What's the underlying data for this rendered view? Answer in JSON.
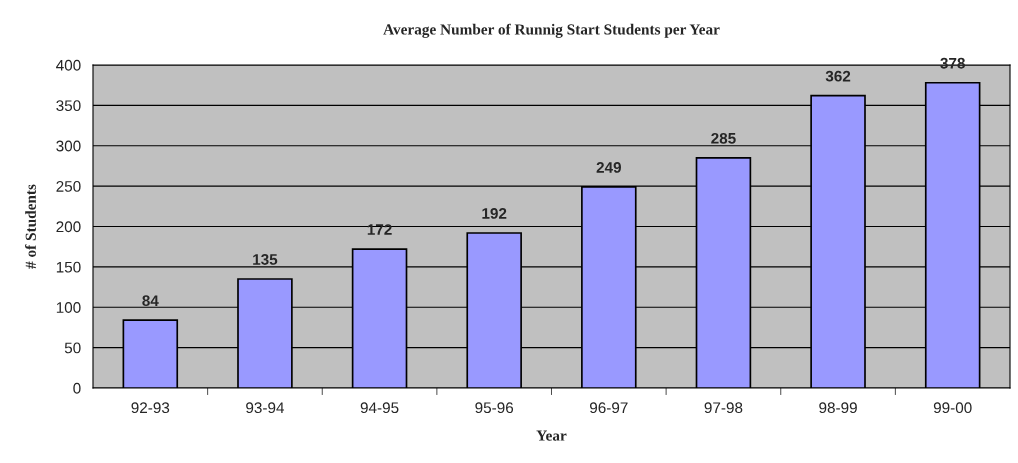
{
  "chart_data": {
    "type": "bar",
    "title": "Average Number of Runnig Start Students per Year",
    "xlabel": "Year",
    "ylabel": "# of Students",
    "categories": [
      "92-93",
      "93-94",
      "94-95",
      "95-96",
      "96-97",
      "97-98",
      "98-99",
      "99-00"
    ],
    "values": [
      84,
      135,
      172,
      192,
      249,
      285,
      362,
      378
    ],
    "color": "#9999ff",
    "ylim": [
      0,
      400
    ],
    "yticks": [
      0,
      50,
      100,
      150,
      200,
      250,
      300,
      350,
      400
    ],
    "grid": "y",
    "data_labels": true,
    "legend": false
  }
}
